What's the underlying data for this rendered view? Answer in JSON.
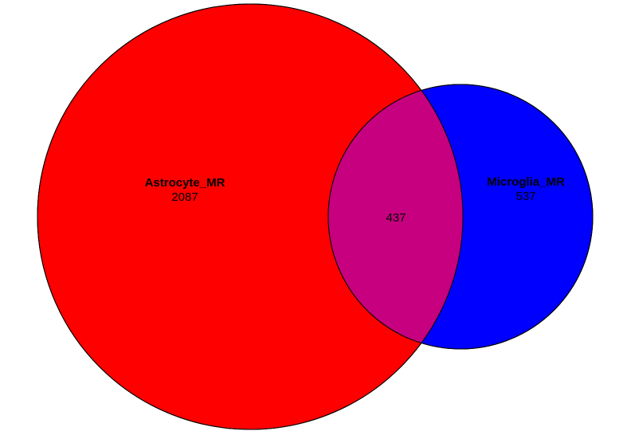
{
  "sets": [
    {
      "name": "Astrocyte_MR",
      "count": "2087",
      "color": "#ff0000"
    },
    {
      "name": "Microglia_MR",
      "count": "537",
      "color": "#0000ff"
    }
  ],
  "intersection": {
    "count": "437",
    "color": "#c6007f"
  }
}
